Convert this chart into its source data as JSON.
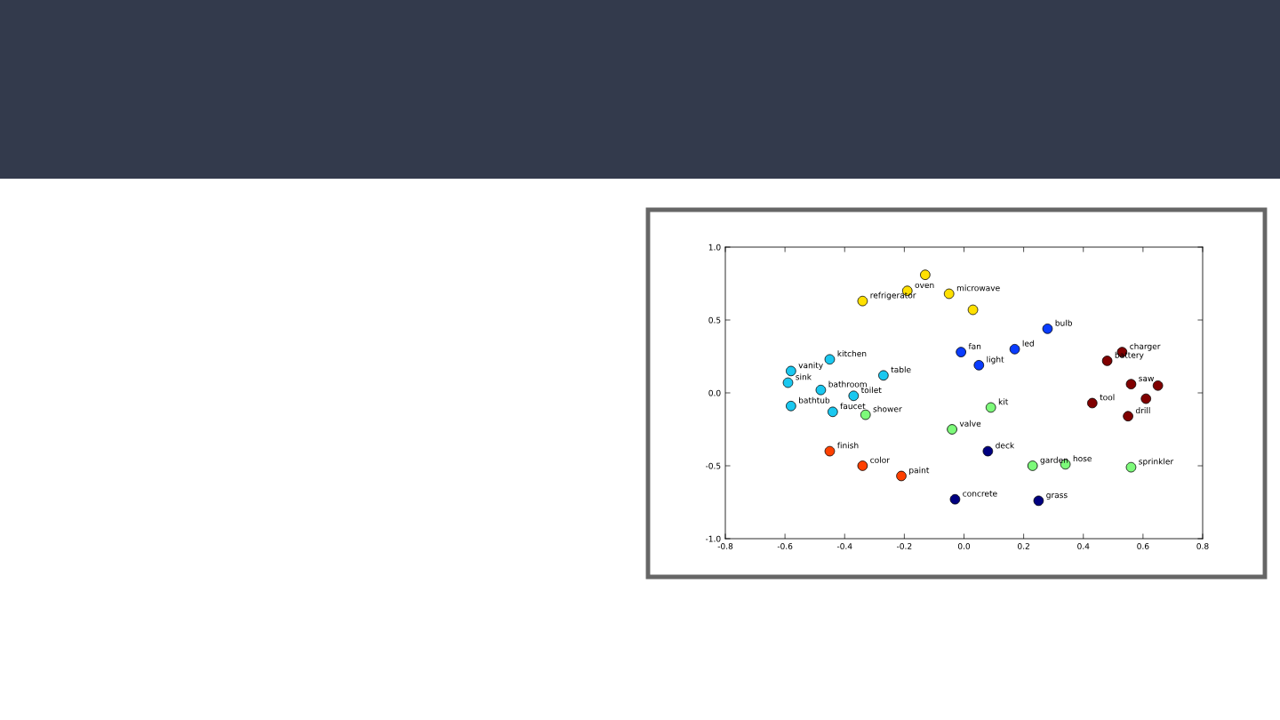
{
  "chart_data": {
    "type": "scatter",
    "marker": "circle",
    "grid": false,
    "xlim": [
      -0.8,
      0.8
    ],
    "ylim": [
      -1.0,
      1.0
    ],
    "xticks": [
      -0.8,
      -0.6,
      -0.4,
      -0.2,
      {
        "value": 0,
        "label": "0.0"
      },
      0.2,
      0.4,
      0.6,
      0.8
    ],
    "yticks": [
      {
        "value": -1,
        "label": "-1.0"
      },
      -0.5,
      {
        "value": 0,
        "label": "0.0"
      },
      0.5,
      {
        "value": 1,
        "label": "1.0"
      }
    ],
    "series": [
      {
        "color": "#ffe000",
        "x": [
          -0.13,
          -0.19,
          -0.05,
          -0.34,
          0.03
        ],
        "values": [
          0.81,
          0.7,
          0.68,
          0.63,
          0.57
        ]
      },
      {
        "color": "#0a3cff",
        "x": [
          0.28,
          -0.01,
          0.17,
          0.05
        ],
        "values": [
          0.44,
          0.28,
          0.3,
          0.19
        ]
      },
      {
        "color": "#800000",
        "x": [
          0.53,
          0.48,
          0.56,
          0.65,
          0.61,
          0.43,
          0.55
        ],
        "values": [
          0.28,
          0.22,
          0.06,
          0.05,
          -0.04,
          -0.07,
          -0.16
        ]
      },
      {
        "color": "#1ac8f0",
        "x": [
          -0.45,
          -0.58,
          -0.59,
          -0.27,
          -0.48,
          -0.37,
          -0.58,
          -0.44
        ],
        "values": [
          0.23,
          0.15,
          0.07,
          0.12,
          0.02,
          -0.02,
          -0.09,
          -0.13
        ]
      },
      {
        "color": "#7dfa7a",
        "x": [
          0.09,
          -0.33,
          -0.04,
          0.23,
          0.34,
          0.56
        ],
        "values": [
          -0.1,
          -0.15,
          -0.25,
          -0.5,
          -0.49,
          -0.51
        ]
      },
      {
        "color": "#ff4000",
        "x": [
          -0.45,
          -0.34,
          -0.21
        ],
        "values": [
          -0.4,
          -0.5,
          -0.57
        ]
      },
      {
        "color": "#000080",
        "x": [
          0.08,
          -0.03,
          0.25
        ],
        "values": [
          -0.4,
          -0.73,
          -0.74
        ]
      }
    ],
    "annotations": [
      {
        "text": "oven",
        "x": -0.19,
        "y": 0.7
      },
      {
        "text": "microwave",
        "x": -0.05,
        "y": 0.68
      },
      {
        "text": "refrigerator",
        "x": -0.34,
        "y": 0.63
      },
      {
        "text": "bulb",
        "x": 0.28,
        "y": 0.44
      },
      {
        "text": "fan",
        "x": -0.01,
        "y": 0.28
      },
      {
        "text": "led",
        "x": 0.17,
        "y": 0.3
      },
      {
        "text": "light",
        "x": 0.05,
        "y": 0.19
      },
      {
        "text": "charger",
        "x": 0.53,
        "y": 0.28
      },
      {
        "text": "battery",
        "x": 0.48,
        "y": 0.22
      },
      {
        "text": "saw",
        "x": 0.56,
        "y": 0.06
      },
      {
        "text": "tool",
        "x": 0.43,
        "y": -0.07
      },
      {
        "text": "drill",
        "x": 0.55,
        "y": -0.16
      },
      {
        "text": "kitchen",
        "x": -0.45,
        "y": 0.23
      },
      {
        "text": "vanity",
        "x": -0.58,
        "y": 0.15
      },
      {
        "text": "sink",
        "x": -0.59,
        "y": 0.07
      },
      {
        "text": "table",
        "x": -0.27,
        "y": 0.12
      },
      {
        "text": "bathroom",
        "x": -0.48,
        "y": 0.02
      },
      {
        "text": "toilet",
        "x": -0.37,
        "y": -0.02
      },
      {
        "text": "bathtub",
        "x": -0.58,
        "y": -0.09
      },
      {
        "text": "faucet",
        "x": -0.44,
        "y": -0.13
      },
      {
        "text": "kit",
        "x": 0.09,
        "y": -0.1
      },
      {
        "text": "shower",
        "x": -0.33,
        "y": -0.15
      },
      {
        "text": "valve",
        "x": -0.04,
        "y": -0.25
      },
      {
        "text": "garden",
        "x": 0.23,
        "y": -0.5
      },
      {
        "text": "hose",
        "x": 0.34,
        "y": -0.49
      },
      {
        "text": "sprinkler",
        "x": 0.56,
        "y": -0.51
      },
      {
        "text": "finish",
        "x": -0.45,
        "y": -0.4
      },
      {
        "text": "color",
        "x": -0.34,
        "y": -0.5
      },
      {
        "text": "paint",
        "x": -0.21,
        "y": -0.57
      },
      {
        "text": "deck",
        "x": 0.08,
        "y": -0.4
      },
      {
        "text": "concrete",
        "x": -0.03,
        "y": -0.73
      },
      {
        "text": "grass",
        "x": 0.25,
        "y": -0.74
      }
    ]
  }
}
